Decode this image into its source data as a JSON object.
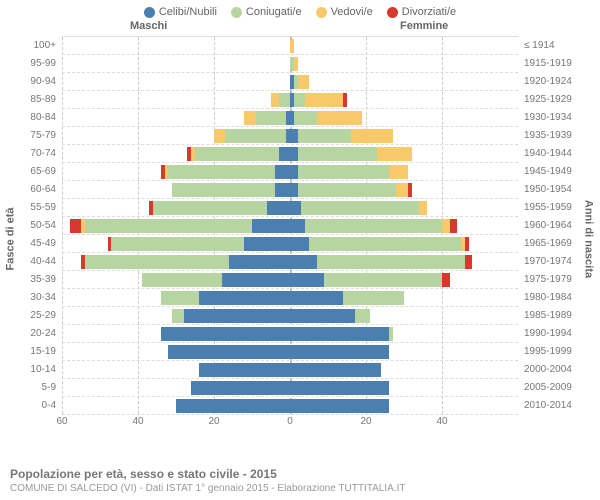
{
  "legend": [
    {
      "label": "Celibi/Nubili",
      "color": "#4a7fb0"
    },
    {
      "label": "Coniugati/e",
      "color": "#b7d5a1"
    },
    {
      "label": "Vedovi/e",
      "color": "#f7c96b"
    },
    {
      "label": "Divorziati/e",
      "color": "#d63a2e"
    }
  ],
  "header_male": "Maschi",
  "header_female": "Femmine",
  "yaxis_left": "Fasce di età",
  "yaxis_right": "Anni di nascita",
  "xmax": 60,
  "xticks": [
    60,
    40,
    20,
    0,
    20,
    40
  ],
  "colors": {
    "single": "#4a7fb0",
    "married": "#b7d5a1",
    "widowed": "#f7c96b",
    "divorced": "#d63a2e",
    "grid": "#dddddd",
    "text": "#777777"
  },
  "rows": [
    {
      "age": "100+",
      "birth": "≤ 1914",
      "m": {
        "s": 0,
        "m": 0,
        "w": 0,
        "d": 0
      },
      "f": {
        "s": 0,
        "m": 0,
        "w": 1,
        "d": 0
      }
    },
    {
      "age": "95-99",
      "birth": "1915-1919",
      "m": {
        "s": 0,
        "m": 0,
        "w": 0,
        "d": 0
      },
      "f": {
        "s": 0,
        "m": 1,
        "w": 1,
        "d": 0
      }
    },
    {
      "age": "90-94",
      "birth": "1920-1924",
      "m": {
        "s": 0,
        "m": 0,
        "w": 0,
        "d": 0
      },
      "f": {
        "s": 1,
        "m": 1,
        "w": 3,
        "d": 0
      }
    },
    {
      "age": "85-89",
      "birth": "1925-1929",
      "m": {
        "s": 0,
        "m": 3,
        "w": 2,
        "d": 0
      },
      "f": {
        "s": 1,
        "m": 3,
        "w": 10,
        "d": 1
      }
    },
    {
      "age": "80-84",
      "birth": "1930-1934",
      "m": {
        "s": 1,
        "m": 8,
        "w": 3,
        "d": 0
      },
      "f": {
        "s": 1,
        "m": 6,
        "w": 12,
        "d": 0
      }
    },
    {
      "age": "75-79",
      "birth": "1935-1939",
      "m": {
        "s": 1,
        "m": 16,
        "w": 3,
        "d": 0
      },
      "f": {
        "s": 2,
        "m": 14,
        "w": 11,
        "d": 0
      }
    },
    {
      "age": "70-74",
      "birth": "1940-1944",
      "m": {
        "s": 3,
        "m": 22,
        "w": 1,
        "d": 1
      },
      "f": {
        "s": 2,
        "m": 21,
        "w": 9,
        "d": 0
      }
    },
    {
      "age": "65-69",
      "birth": "1945-1949",
      "m": {
        "s": 4,
        "m": 28,
        "w": 1,
        "d": 1
      },
      "f": {
        "s": 2,
        "m": 24,
        "w": 5,
        "d": 0
      }
    },
    {
      "age": "60-64",
      "birth": "1950-1954",
      "m": {
        "s": 4,
        "m": 27,
        "w": 0,
        "d": 0
      },
      "f": {
        "s": 2,
        "m": 26,
        "w": 3,
        "d": 1
      }
    },
    {
      "age": "55-59",
      "birth": "1955-1959",
      "m": {
        "s": 6,
        "m": 30,
        "w": 0,
        "d": 1
      },
      "f": {
        "s": 3,
        "m": 31,
        "w": 2,
        "d": 0
      }
    },
    {
      "age": "50-54",
      "birth": "1960-1964",
      "m": {
        "s": 10,
        "m": 44,
        "w": 1,
        "d": 3
      },
      "f": {
        "s": 4,
        "m": 36,
        "w": 2,
        "d": 2
      }
    },
    {
      "age": "45-49",
      "birth": "1965-1969",
      "m": {
        "s": 12,
        "m": 35,
        "w": 0,
        "d": 1
      },
      "f": {
        "s": 5,
        "m": 40,
        "w": 1,
        "d": 1
      }
    },
    {
      "age": "40-44",
      "birth": "1970-1974",
      "m": {
        "s": 16,
        "m": 38,
        "w": 0,
        "d": 1
      },
      "f": {
        "s": 7,
        "m": 39,
        "w": 0,
        "d": 2
      }
    },
    {
      "age": "35-39",
      "birth": "1975-1979",
      "m": {
        "s": 18,
        "m": 21,
        "w": 0,
        "d": 0
      },
      "f": {
        "s": 9,
        "m": 31,
        "w": 0,
        "d": 2
      }
    },
    {
      "age": "30-34",
      "birth": "1980-1984",
      "m": {
        "s": 24,
        "m": 10,
        "w": 0,
        "d": 0
      },
      "f": {
        "s": 14,
        "m": 16,
        "w": 0,
        "d": 0
      }
    },
    {
      "age": "25-29",
      "birth": "1985-1989",
      "m": {
        "s": 28,
        "m": 3,
        "w": 0,
        "d": 0
      },
      "f": {
        "s": 17,
        "m": 4,
        "w": 0,
        "d": 0
      }
    },
    {
      "age": "20-24",
      "birth": "1990-1994",
      "m": {
        "s": 34,
        "m": 0,
        "w": 0,
        "d": 0
      },
      "f": {
        "s": 26,
        "m": 1,
        "w": 0,
        "d": 0
      }
    },
    {
      "age": "15-19",
      "birth": "1995-1999",
      "m": {
        "s": 32,
        "m": 0,
        "w": 0,
        "d": 0
      },
      "f": {
        "s": 26,
        "m": 0,
        "w": 0,
        "d": 0
      }
    },
    {
      "age": "10-14",
      "birth": "2000-2004",
      "m": {
        "s": 24,
        "m": 0,
        "w": 0,
        "d": 0
      },
      "f": {
        "s": 24,
        "m": 0,
        "w": 0,
        "d": 0
      }
    },
    {
      "age": "5-9",
      "birth": "2005-2009",
      "m": {
        "s": 26,
        "m": 0,
        "w": 0,
        "d": 0
      },
      "f": {
        "s": 26,
        "m": 0,
        "w": 0,
        "d": 0
      }
    },
    {
      "age": "0-4",
      "birth": "2010-2014",
      "m": {
        "s": 30,
        "m": 0,
        "w": 0,
        "d": 0
      },
      "f": {
        "s": 26,
        "m": 0,
        "w": 0,
        "d": 0
      }
    }
  ],
  "footer_title": "Popolazione per età, sesso e stato civile - 2015",
  "footer_sub": "COMUNE DI SALCEDO (VI) - Dati ISTAT 1° gennaio 2015 - Elaborazione TUTTITALIA.IT"
}
